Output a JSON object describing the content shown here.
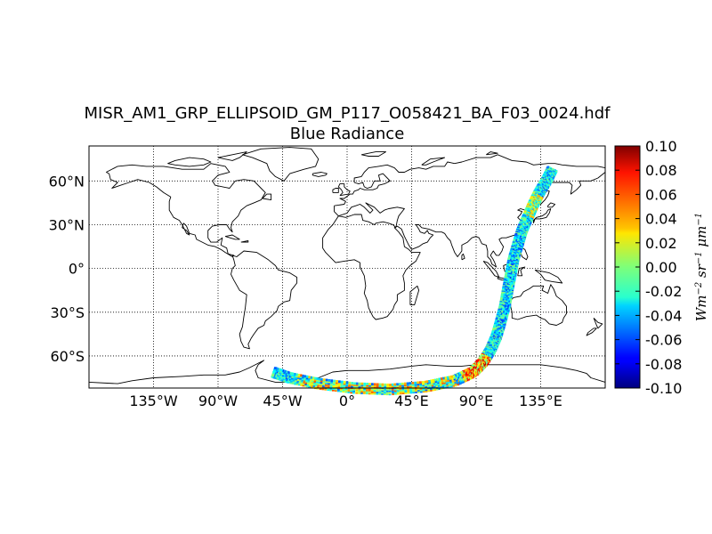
{
  "title": "MISR_AM1_GRP_ELLIPSOID_GM_P117_O058421_BA_F03_0024.hdf",
  "subtitle": "Blue Radiance",
  "chart_data": {
    "type": "heatmap",
    "projection": "cylindrical",
    "lon_range": [
      -180,
      180
    ],
    "lat_range": [
      -90,
      90
    ],
    "x_ticks": [
      "135°W",
      "90°W",
      "45°W",
      "0°",
      "45°E",
      "90°E",
      "135°E"
    ],
    "x_tick_values": [
      -135,
      -90,
      -45,
      0,
      45,
      90,
      135
    ],
    "y_ticks": [
      "60°N",
      "30°N",
      "0°",
      "30°S",
      "60°S"
    ],
    "y_tick_values": [
      60,
      30,
      0,
      -30,
      -60
    ],
    "grid": true,
    "colorbar": {
      "colormap": "jet",
      "min": -0.1,
      "max": 0.1,
      "tick_labels": [
        "0.10",
        "0.08",
        "0.06",
        "0.04",
        "0.02",
        "0.00",
        "-0.02",
        "-0.04",
        "-0.06",
        "-0.08",
        "-0.10"
      ],
      "tick_values": [
        0.1,
        0.08,
        0.06,
        0.04,
        0.02,
        0.0,
        -0.02,
        -0.04,
        -0.06,
        -0.08,
        -0.1
      ],
      "label": "Wm^-2 sr^-1 µm^-1"
    },
    "swath_track": [
      {
        "lon": 143,
        "lat": 68
      },
      {
        "lon": 139,
        "lat": 60
      },
      {
        "lon": 134,
        "lat": 52
      },
      {
        "lon": 130,
        "lat": 44
      },
      {
        "lon": 126,
        "lat": 35
      },
      {
        "lon": 122,
        "lat": 26
      },
      {
        "lon": 119,
        "lat": 16
      },
      {
        "lon": 116,
        "lat": 6
      },
      {
        "lon": 114,
        "lat": -5
      },
      {
        "lon": 112,
        "lat": -15
      },
      {
        "lon": 110,
        "lat": -26
      },
      {
        "lon": 107,
        "lat": -37
      },
      {
        "lon": 104,
        "lat": -47
      },
      {
        "lon": 100,
        "lat": -56
      },
      {
        "lon": 95,
        "lat": -64
      },
      {
        "lon": 88,
        "lat": -71
      },
      {
        "lon": 75,
        "lat": -77
      },
      {
        "lon": 55,
        "lat": -81
      },
      {
        "lon": 30,
        "lat": -83
      },
      {
        "lon": 5,
        "lat": -82
      },
      {
        "lon": -20,
        "lat": -79
      },
      {
        "lon": -40,
        "lat": -75
      },
      {
        "lon": -52,
        "lat": -71
      }
    ],
    "swath_width_deg": 4
  }
}
